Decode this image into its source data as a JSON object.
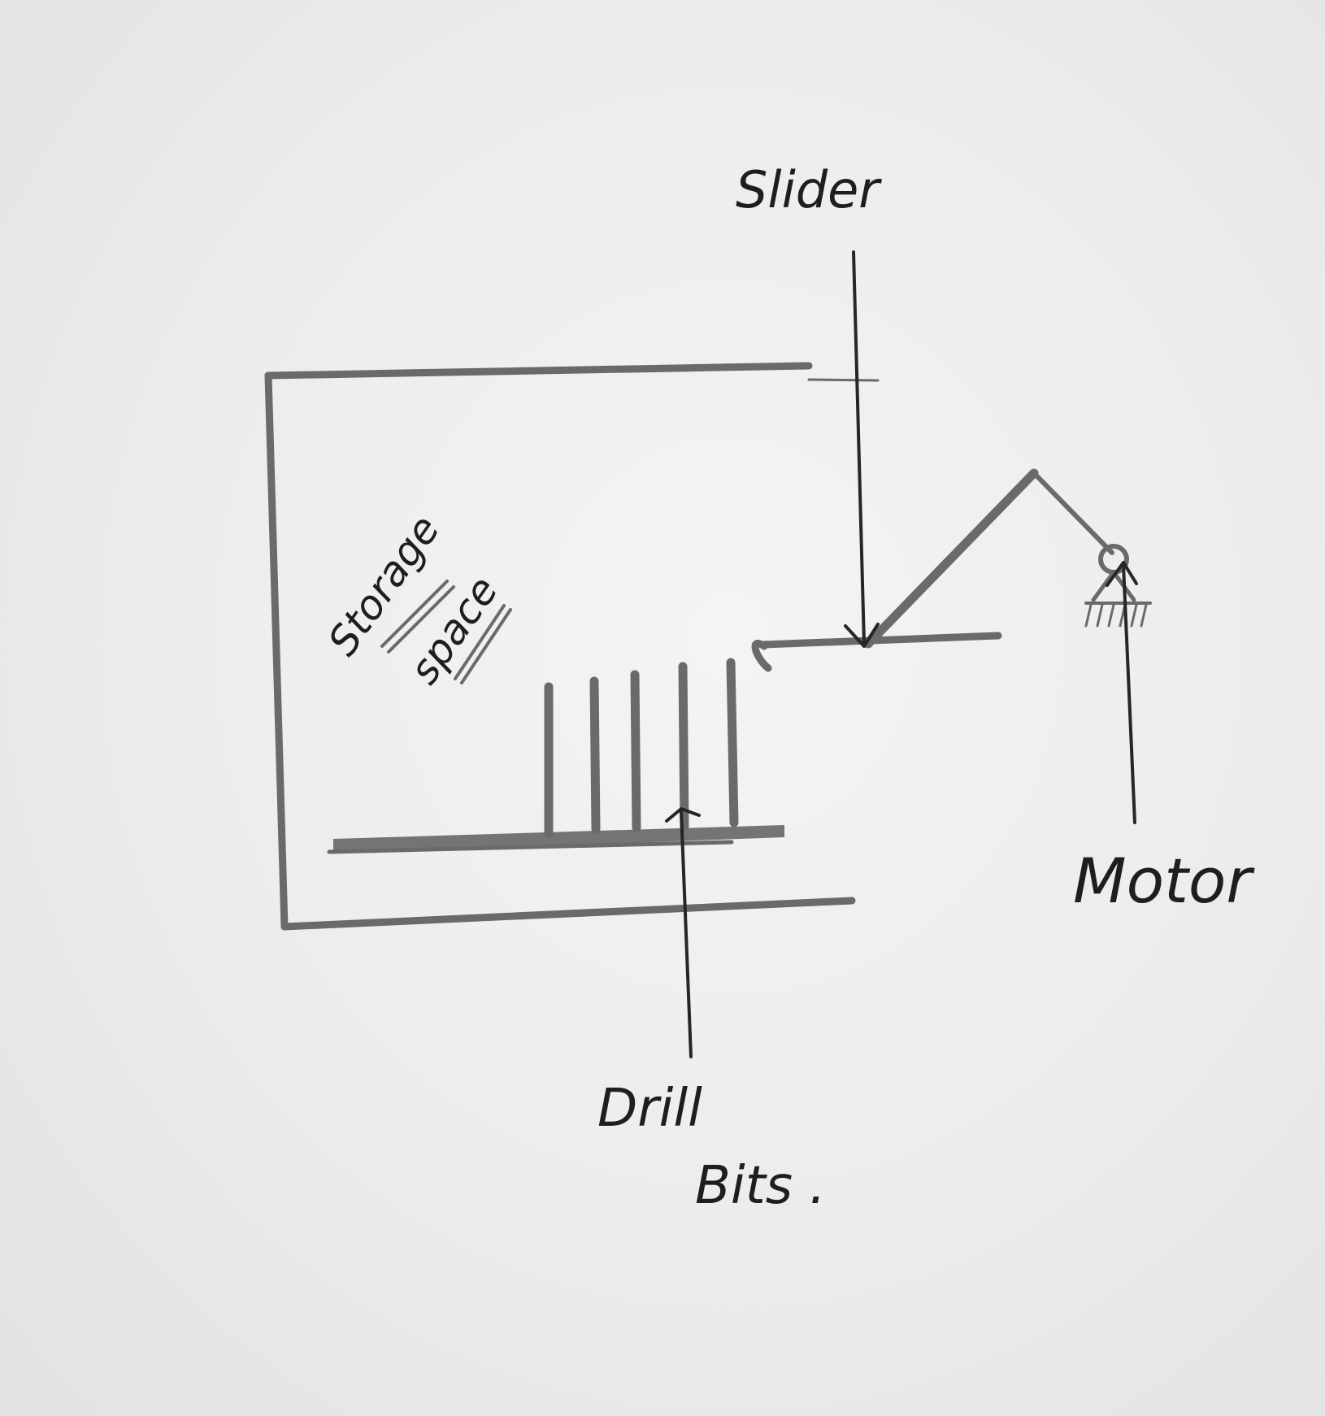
{
  "diagram": {
    "labels": {
      "slider": "Slider",
      "storage_line1": "Storage",
      "storage_line2": "space",
      "motor": "Motor",
      "drill_line1": "Drill",
      "drill_line2": "Bits ."
    },
    "ink_color": "#262626",
    "pencil_color": "#6a6a6a",
    "paper_color": "#ececec"
  }
}
